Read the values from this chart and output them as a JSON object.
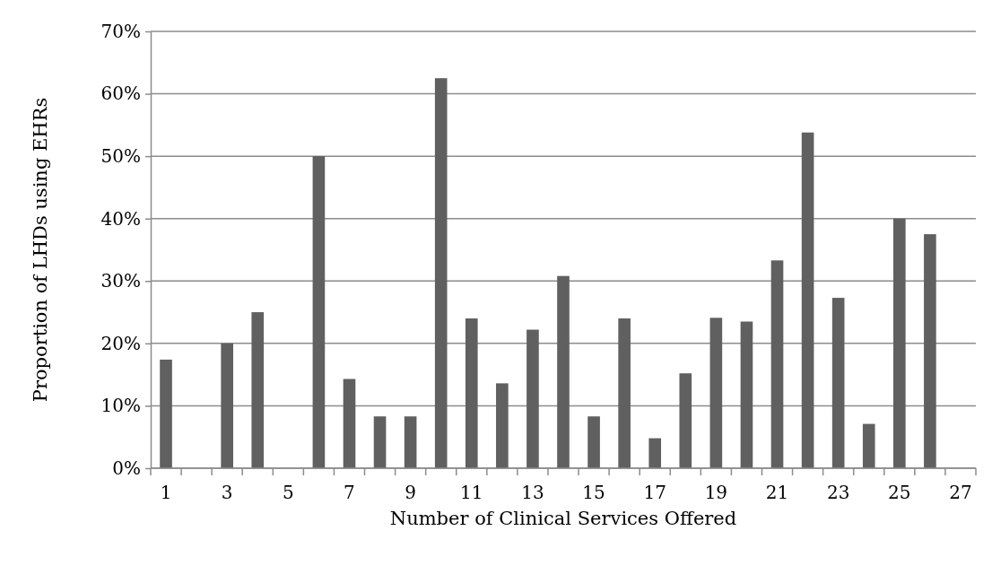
{
  "chart_data": {
    "type": "bar",
    "xlabel": "Number of Clinical Services Offered",
    "ylabel": "Proportion of LHDs using EHRs",
    "categories": [
      "1",
      null,
      "3",
      null,
      "5",
      null,
      "7",
      null,
      "9",
      null,
      "11",
      null,
      "13",
      null,
      "15",
      null,
      "17",
      null,
      "19",
      null,
      "21",
      null,
      "23",
      null,
      "25",
      null,
      "27"
    ],
    "values": [
      17.4,
      0,
      20,
      25,
      0,
      50,
      14.3,
      8.3,
      8.3,
      62.5,
      24,
      13.6,
      22.2,
      30.8,
      8.3,
      24,
      4.8,
      15.2,
      24.1,
      23.5,
      33.3,
      53.8,
      27.3,
      7.1,
      40,
      37.5,
      0
    ],
    "color": "#606060",
    "ylim": [
      0,
      70
    ],
    "yticks": [
      {
        "value": 0,
        "label": "0%"
      },
      {
        "value": 10,
        "label": "10%"
      },
      {
        "value": 20,
        "label": "20%"
      },
      {
        "value": 30,
        "label": "30%"
      },
      {
        "value": 40,
        "label": "40%"
      },
      {
        "value": 50,
        "label": "50%"
      },
      {
        "value": 60,
        "label": "60%"
      },
      {
        "value": 70,
        "label": "70%"
      }
    ],
    "grid": "y"
  }
}
